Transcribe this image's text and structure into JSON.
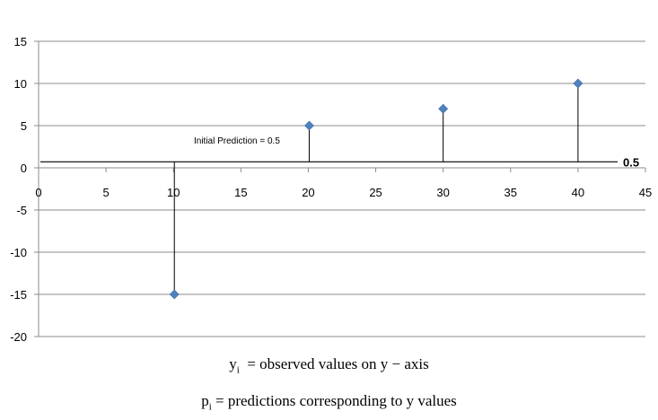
{
  "chart_data": {
    "type": "scatter",
    "x": [
      10,
      20,
      30,
      40
    ],
    "y": [
      -15,
      5,
      7,
      10
    ],
    "xlim": [
      0,
      45
    ],
    "ylim": [
      -20,
      15
    ],
    "xticks": [
      0,
      5,
      10,
      15,
      20,
      25,
      30,
      35,
      40,
      45
    ],
    "yticks": [
      -20,
      -15,
      -10,
      -5,
      0,
      5,
      10,
      15
    ],
    "grid": true,
    "marker": "diamond",
    "colors": {
      "marker": "#4f81bd",
      "grid": "#8c8c8c",
      "lines": "#000000"
    },
    "prediction_line": {
      "value": 0.5,
      "label": "0.5"
    },
    "annotation": "Initial Prediction = 0.5"
  },
  "captions": {
    "line1": {
      "symbol": "y",
      "subscript": "i",
      "text": "= observed values on y − axis"
    },
    "line2": {
      "symbol": "p",
      "subscript": "i",
      "text": "= predictions corresponding to y values"
    }
  }
}
